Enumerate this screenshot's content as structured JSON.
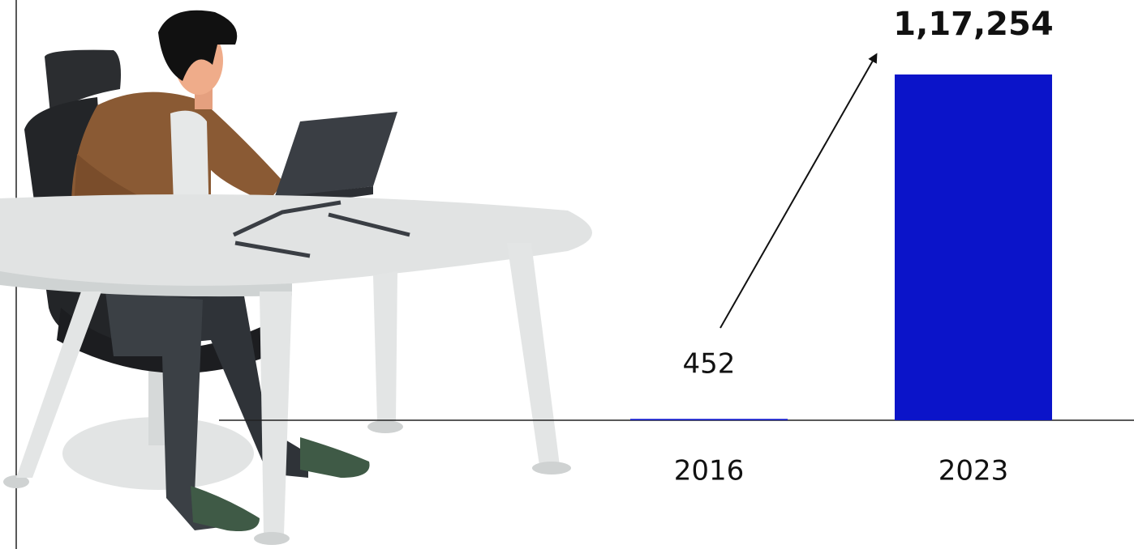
{
  "chart_data": {
    "type": "bar",
    "categories": [
      "2016",
      "2023"
    ],
    "values": [
      452,
      117254
    ],
    "value_labels": [
      "452",
      "1,17,254"
    ],
    "color": "#0b14c9"
  }
}
